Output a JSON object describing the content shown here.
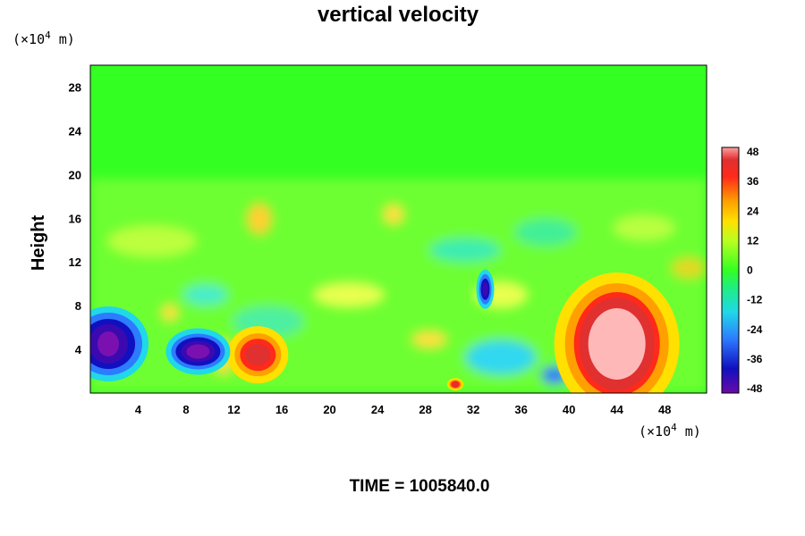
{
  "chart_data": {
    "type": "heatmap",
    "title": "vertical velocity",
    "ylabel": "Height",
    "x_unit_base": "(×10",
    "x_unit_exp": "4",
    "x_unit_tail": " m)",
    "y_unit_base": "(×10",
    "y_unit_exp": "4",
    "y_unit_tail": " m)",
    "xlim": [
      0,
      51.5
    ],
    "ylim": [
      0,
      30
    ],
    "xticks": [
      4,
      8,
      12,
      16,
      20,
      24,
      28,
      32,
      36,
      40,
      44,
      48
    ],
    "yticks": [
      4,
      8,
      12,
      16,
      20,
      24,
      28
    ],
    "colorbar": {
      "min": -48,
      "max": 48,
      "ticks": [
        48,
        36,
        24,
        12,
        0,
        -12,
        -24,
        -36,
        -48
      ]
    },
    "features": [
      {
        "x": 44,
        "y": 4.5,
        "value": 50
      },
      {
        "x": 14,
        "y": 3.5,
        "value": 40
      },
      {
        "x": 1.5,
        "y": 4.5,
        "value": -50
      },
      {
        "x": 9,
        "y": 3.8,
        "value": -50
      },
      {
        "x": 33,
        "y": 9.5,
        "value": -40
      },
      {
        "x": 30.5,
        "y": 0.8,
        "value": 35
      }
    ],
    "footer": "TIME = 1005840.0"
  }
}
